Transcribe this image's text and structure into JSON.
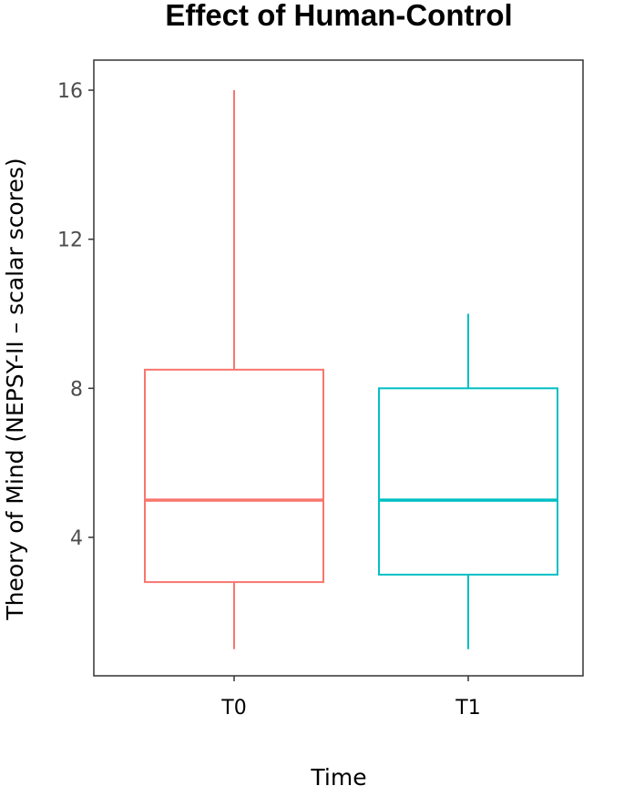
{
  "chart_data": {
    "type": "boxplot",
    "title": "Effect of Human-Control",
    "xlabel": "Time",
    "ylabel": "Theory of Mind (NEPSY-II – scalar scores)",
    "categories": [
      "T0",
      "T1"
    ],
    "ylim": [
      0,
      16.5
    ],
    "yticks": [
      4,
      8,
      12,
      16
    ],
    "grid": false,
    "legend": "none",
    "boxes": [
      {
        "category": "T0",
        "color": "#F8766D",
        "min": 1,
        "q1": 2.8,
        "median": 5,
        "q3": 8.5,
        "max": 16
      },
      {
        "category": "T1",
        "color": "#00BFC4",
        "min": 1,
        "q1": 3,
        "median": 5,
        "q3": 8,
        "max": 10
      }
    ]
  }
}
